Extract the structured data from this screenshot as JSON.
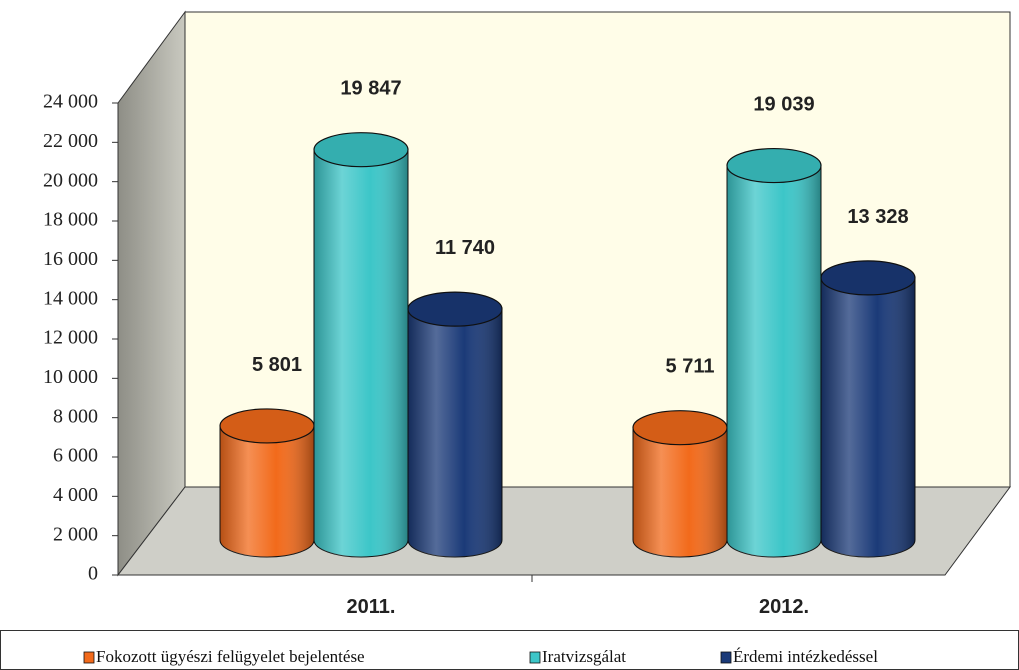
{
  "chart_data": {
    "type": "bar3d",
    "categories": [
      "2011.",
      "2012."
    ],
    "series": [
      {
        "name": "Fokozott ügyészi felügyelet bejelentése",
        "color": "#f26a1b",
        "values": [
          5801,
          5711
        ],
        "value_labels": [
          "5 801",
          "5 711"
        ]
      },
      {
        "name": "Iratvizsgálat",
        "color": "#3cc6c8",
        "values": [
          19847,
          19039
        ],
        "value_labels": [
          "19 847",
          "19 039"
        ]
      },
      {
        "name": "Érdemi intézkedéssel",
        "color": "#1b3a78",
        "values": [
          11740,
          13328
        ],
        "value_labels": [
          "11 740",
          "13 328"
        ]
      }
    ],
    "ylim": [
      0,
      24000
    ],
    "yticks": [
      0,
      {
        "value": 2000,
        "label": "2 000"
      },
      {
        "value": 4000,
        "label": "4 000"
      },
      {
        "value": 6000,
        "label": "6 000"
      },
      {
        "value": 8000,
        "label": "8 000"
      },
      {
        "value": 10000,
        "label": "10 000"
      },
      {
        "value": 12000,
        "label": "12 000"
      },
      {
        "value": 14000,
        "label": "14 000"
      },
      {
        "value": 16000,
        "label": "16 000"
      },
      {
        "value": 18000,
        "label": "18 000"
      },
      {
        "value": 20000,
        "label": "20 000"
      },
      {
        "value": 22000,
        "label": "22 000"
      },
      {
        "value": 24000,
        "label": "24 000"
      }
    ],
    "legend": "bottom"
  }
}
